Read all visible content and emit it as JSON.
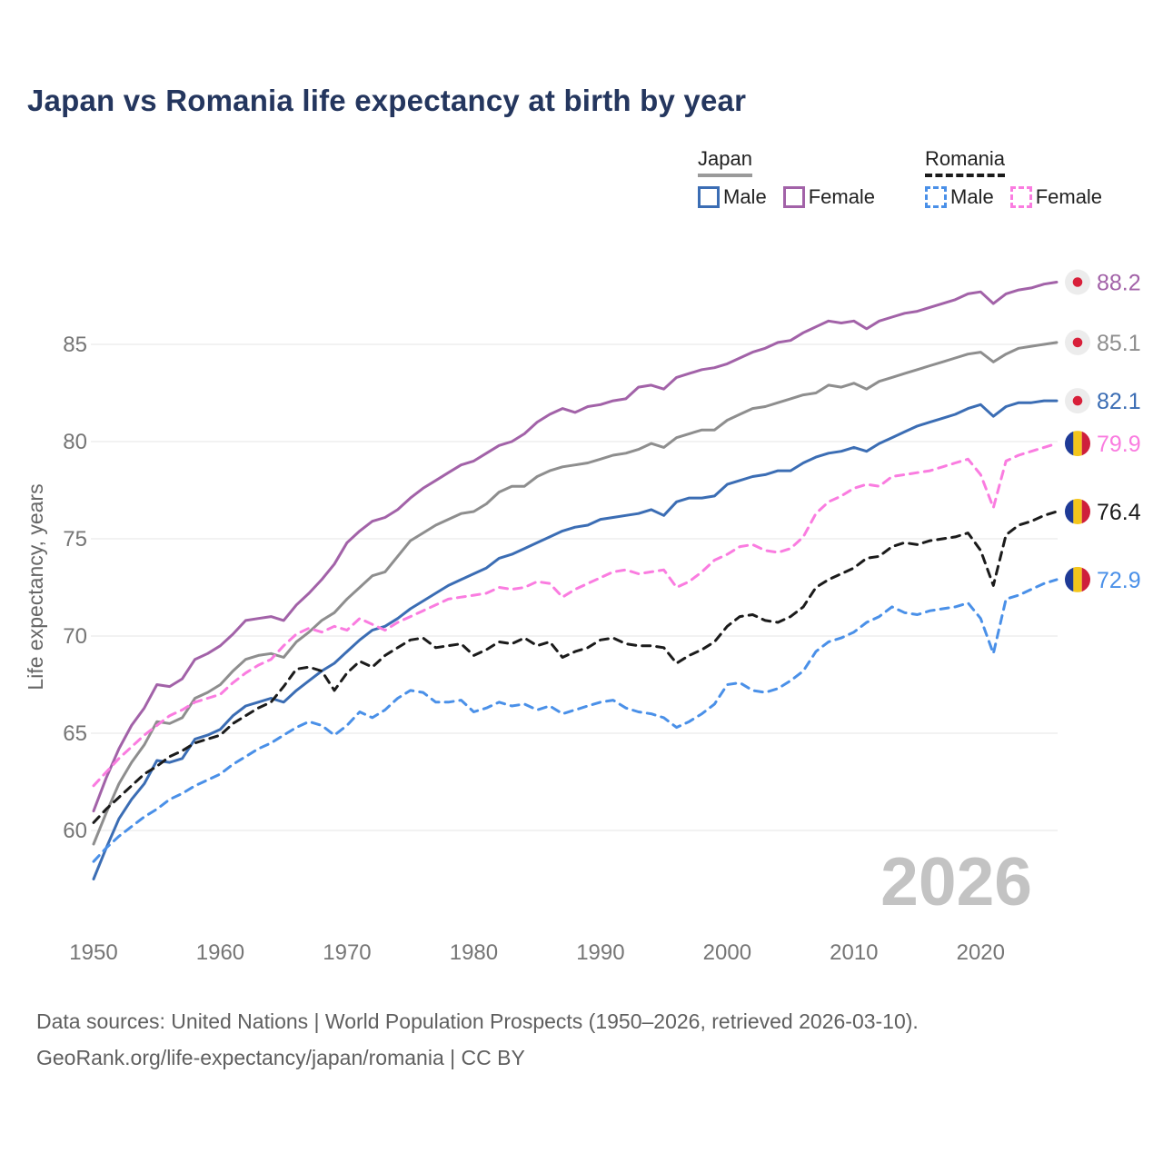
{
  "title": "Japan vs Romania life expectancy at birth by year",
  "watermark": "2026",
  "footer": {
    "line1": "Data sources: United Nations | World Population Prospects (1950–2026, retrieved 2026-03-10).",
    "line2": "GeoRank.org/life-expectancy/japan/romania | CC BY"
  },
  "legend": {
    "japan": {
      "label": "Japan",
      "underline": {
        "style": "solid",
        "color": "#9a9a9a"
      },
      "items": [
        {
          "label": "Male",
          "style": "solid",
          "color": "#3b6db4"
        },
        {
          "label": "Female",
          "style": "solid",
          "color": "#a262a8"
        }
      ]
    },
    "romania": {
      "label": "Romania",
      "underline": {
        "style": "dashed",
        "color": "#1b1b1b"
      },
      "items": [
        {
          "label": "Male",
          "style": "dashed",
          "color": "#4a90e8"
        },
        {
          "label": "Female",
          "style": "dashed",
          "color": "#fa7ce0"
        }
      ]
    }
  },
  "flags": {
    "japan": {
      "background": "#ececec",
      "dot": "#d8203a"
    },
    "romania": {
      "blue": "#1e3a96",
      "yellow": "#f3c51c",
      "red": "#ce1f3c"
    }
  },
  "chart_data": {
    "type": "line",
    "title": "Japan vs Romania life expectancy at birth by year",
    "xlabel": "",
    "ylabel": "Life expectancy, years",
    "x_start": 1950,
    "x_end": 2026,
    "x_ticks": [
      1950,
      1960,
      1970,
      1980,
      1990,
      2000,
      2010,
      2020
    ],
    "y_ticks": [
      60,
      65,
      70,
      75,
      80,
      85
    ],
    "ylim": [
      57,
      89
    ],
    "grid": true,
    "legend_position": "top-right",
    "gridline_color": "#e9e9e9",
    "tick_color": "#757575",
    "watermark_color": "#c3c3c3",
    "series": [
      {
        "id": "japan-female",
        "name": "Japan Female",
        "country": "japan",
        "sex": "female",
        "style": "solid",
        "color": "#a262a8",
        "end_label": "88.2",
        "values": [
          61.0,
          62.7,
          64.2,
          65.4,
          66.3,
          67.5,
          67.4,
          67.8,
          68.8,
          69.1,
          69.5,
          70.1,
          70.8,
          70.9,
          71.0,
          70.8,
          71.6,
          72.2,
          72.9,
          73.7,
          74.8,
          75.4,
          75.9,
          76.1,
          76.5,
          77.1,
          77.6,
          78.0,
          78.4,
          78.8,
          79.0,
          79.4,
          79.8,
          80.0,
          80.4,
          81.0,
          81.4,
          81.7,
          81.5,
          81.8,
          81.9,
          82.1,
          82.2,
          82.8,
          82.9,
          82.7,
          83.3,
          83.5,
          83.7,
          83.8,
          84.0,
          84.3,
          84.6,
          84.8,
          85.1,
          85.2,
          85.6,
          85.9,
          86.2,
          86.1,
          86.2,
          85.8,
          86.2,
          86.4,
          86.6,
          86.7,
          86.9,
          87.1,
          87.3,
          87.6,
          87.7,
          87.1,
          87.6,
          87.8,
          87.9,
          88.1,
          88.2
        ]
      },
      {
        "id": "japan-total",
        "name": "Japan Both sexes",
        "country": "japan",
        "sex": "both",
        "style": "solid",
        "color": "#8e8e8e",
        "end_label": "85.1",
        "values": [
          59.3,
          60.9,
          62.4,
          63.5,
          64.4,
          65.6,
          65.5,
          65.8,
          66.8,
          67.1,
          67.5,
          68.2,
          68.8,
          69.0,
          69.1,
          68.9,
          69.7,
          70.2,
          70.8,
          71.2,
          71.9,
          72.5,
          73.1,
          73.3,
          74.1,
          74.9,
          75.3,
          75.7,
          76.0,
          76.3,
          76.4,
          76.8,
          77.4,
          77.7,
          77.7,
          78.2,
          78.5,
          78.7,
          78.8,
          78.9,
          79.1,
          79.3,
          79.4,
          79.6,
          79.9,
          79.7,
          80.2,
          80.4,
          80.6,
          80.6,
          81.1,
          81.4,
          81.7,
          81.8,
          82.0,
          82.2,
          82.4,
          82.5,
          82.9,
          82.8,
          83.0,
          82.7,
          83.1,
          83.3,
          83.5,
          83.7,
          83.9,
          84.1,
          84.3,
          84.5,
          84.6,
          84.1,
          84.5,
          84.8,
          84.9,
          85.0,
          85.1
        ]
      },
      {
        "id": "japan-male",
        "name": "Japan Male",
        "country": "japan",
        "sex": "male",
        "style": "solid",
        "color": "#3b6db4",
        "end_label": "82.1",
        "values": [
          57.5,
          59.1,
          60.6,
          61.6,
          62.4,
          63.6,
          63.5,
          63.7,
          64.7,
          64.9,
          65.2,
          65.9,
          66.4,
          66.6,
          66.8,
          66.6,
          67.2,
          67.7,
          68.2,
          68.6,
          69.2,
          69.8,
          70.3,
          70.5,
          70.9,
          71.4,
          71.8,
          72.2,
          72.6,
          72.9,
          73.2,
          73.5,
          74.0,
          74.2,
          74.5,
          74.8,
          75.1,
          75.4,
          75.6,
          75.7,
          76.0,
          76.1,
          76.2,
          76.3,
          76.5,
          76.2,
          76.9,
          77.1,
          77.1,
          77.2,
          77.8,
          78.0,
          78.2,
          78.3,
          78.5,
          78.5,
          78.9,
          79.2,
          79.4,
          79.5,
          79.7,
          79.5,
          79.9,
          80.2,
          80.5,
          80.8,
          81.0,
          81.2,
          81.4,
          81.7,
          81.9,
          81.3,
          81.8,
          82.0,
          82.0,
          82.1,
          82.1
        ]
      },
      {
        "id": "romania-female",
        "name": "Romania Female",
        "country": "romania",
        "sex": "female",
        "style": "dashed",
        "color": "#fa7ce0",
        "end_label": "79.9",
        "values": [
          62.3,
          63.0,
          63.7,
          64.3,
          64.9,
          65.4,
          65.9,
          66.2,
          66.6,
          66.8,
          67.0,
          67.6,
          68.1,
          68.5,
          68.8,
          69.5,
          70.1,
          70.4,
          70.2,
          70.5,
          70.3,
          70.9,
          70.6,
          70.3,
          70.7,
          71.0,
          71.3,
          71.6,
          71.9,
          72.0,
          72.1,
          72.2,
          72.5,
          72.4,
          72.5,
          72.8,
          72.7,
          72.0,
          72.4,
          72.7,
          73.0,
          73.3,
          73.4,
          73.2,
          73.3,
          73.4,
          72.5,
          72.8,
          73.3,
          73.9,
          74.2,
          74.6,
          74.7,
          74.4,
          74.3,
          74.5,
          75.1,
          76.3,
          76.9,
          77.2,
          77.6,
          77.8,
          77.7,
          78.2,
          78.3,
          78.4,
          78.5,
          78.7,
          78.9,
          79.1,
          78.3,
          76.6,
          79.0,
          79.3,
          79.5,
          79.7,
          79.9
        ]
      },
      {
        "id": "romania-total",
        "name": "Romania Both sexes",
        "country": "romania",
        "sex": "both",
        "style": "dashed",
        "color": "#1b1b1b",
        "end_label": "76.4",
        "values": [
          60.4,
          61.1,
          61.7,
          62.3,
          62.9,
          63.3,
          63.8,
          64.1,
          64.5,
          64.7,
          64.9,
          65.5,
          65.9,
          66.3,
          66.6,
          67.4,
          68.3,
          68.4,
          68.2,
          67.2,
          68.1,
          68.7,
          68.4,
          69.0,
          69.4,
          69.8,
          69.9,
          69.4,
          69.5,
          69.6,
          69.0,
          69.3,
          69.7,
          69.6,
          69.9,
          69.5,
          69.7,
          68.9,
          69.2,
          69.4,
          69.8,
          69.9,
          69.6,
          69.5,
          69.5,
          69.4,
          68.6,
          69.0,
          69.3,
          69.7,
          70.5,
          71.0,
          71.1,
          70.8,
          70.7,
          71.0,
          71.5,
          72.5,
          72.9,
          73.2,
          73.5,
          74.0,
          74.1,
          74.6,
          74.8,
          74.7,
          74.9,
          75.0,
          75.1,
          75.3,
          74.4,
          72.6,
          75.2,
          75.7,
          75.9,
          76.2,
          76.4
        ]
      },
      {
        "id": "romania-male",
        "name": "Romania Male",
        "country": "romania",
        "sex": "male",
        "style": "dashed",
        "color": "#4a90e8",
        "end_label": "72.9",
        "values": [
          58.4,
          59.1,
          59.7,
          60.2,
          60.7,
          61.1,
          61.6,
          61.9,
          62.3,
          62.6,
          62.9,
          63.4,
          63.8,
          64.2,
          64.5,
          64.9,
          65.3,
          65.6,
          65.4,
          64.9,
          65.4,
          66.1,
          65.8,
          66.2,
          66.8,
          67.2,
          67.1,
          66.6,
          66.6,
          66.7,
          66.1,
          66.3,
          66.6,
          66.4,
          66.5,
          66.2,
          66.4,
          66.0,
          66.2,
          66.4,
          66.6,
          66.7,
          66.3,
          66.1,
          66.0,
          65.8,
          65.3,
          65.6,
          66.0,
          66.5,
          67.5,
          67.6,
          67.2,
          67.1,
          67.3,
          67.7,
          68.2,
          69.2,
          69.7,
          69.9,
          70.2,
          70.7,
          71.0,
          71.5,
          71.2,
          71.1,
          71.3,
          71.4,
          71.5,
          71.7,
          70.9,
          69.1,
          71.9,
          72.1,
          72.4,
          72.7,
          72.9
        ]
      }
    ]
  }
}
